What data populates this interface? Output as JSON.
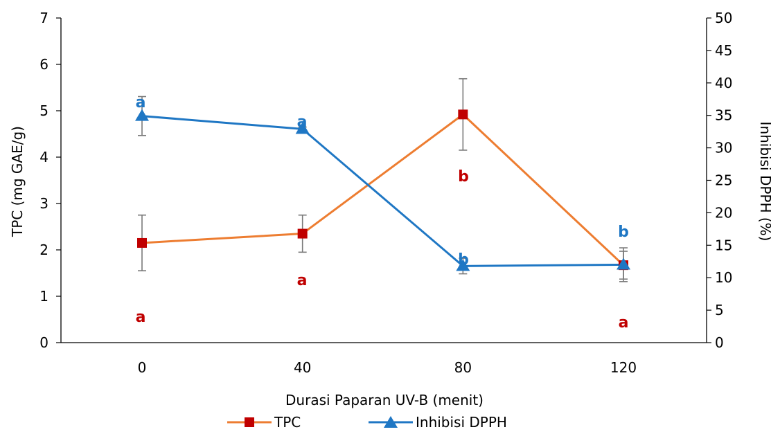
{
  "chart_data": {
    "type": "line",
    "x": [
      0,
      40,
      80,
      120
    ],
    "xlabel": "Durasi Paparan UV-B (menit)",
    "ylabel_left": "TPC  (mg GAE/g)",
    "ylabel_right": "Inhibisi DPPH (%)",
    "ylim_left": [
      0,
      7
    ],
    "yticks_left": [
      0,
      1,
      2,
      3,
      4,
      5,
      6,
      7
    ],
    "ylim_right": [
      0,
      50
    ],
    "yticks_right": [
      0,
      5,
      10,
      15,
      20,
      25,
      30,
      35,
      40,
      45,
      50
    ],
    "grid": false,
    "legend_position": "bottom",
    "series": [
      {
        "name": "TPC",
        "axis": "left",
        "marker": "square",
        "line_color": "#ED7D31",
        "marker_color": "#C00000",
        "values": [
          2.15,
          2.35,
          4.92,
          1.67
        ],
        "error": [
          0.6,
          0.4,
          0.77,
          0.3
        ],
        "labels": [
          "a",
          "a",
          "b",
          "a"
        ],
        "label_color": "#C00000"
      },
      {
        "name": "Inhibisi DPPH",
        "axis": "right",
        "marker": "triangle",
        "line_color": "#1F77C4",
        "marker_color": "#1F77C4",
        "values": [
          34.9,
          32.9,
          11.8,
          12.0
        ],
        "error": [
          3.0,
          0.3,
          1.2,
          2.6
        ],
        "labels": [
          "a",
          "a",
          "b",
          "b"
        ],
        "label_color": "#1F77C4"
      }
    ]
  }
}
